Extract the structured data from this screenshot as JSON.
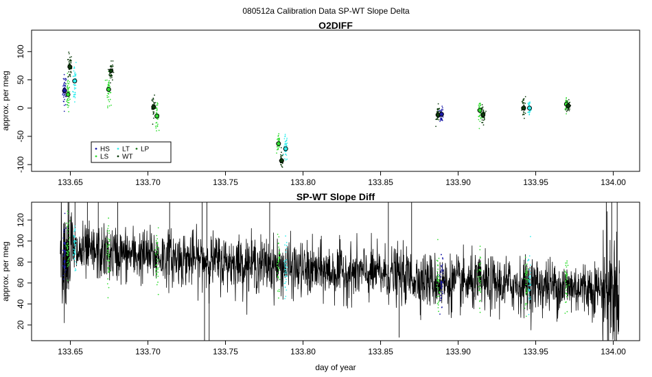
{
  "figure": {
    "title": "080512a   Calibration Data SP-WT Slope Delta"
  },
  "colors": {
    "HS": "#1a1aa8",
    "LS": "#33dd33",
    "LT": "#33eeee",
    "WT": "#0a3a0a",
    "LP": "#1e7a1e",
    "noise": "#000000"
  },
  "chart_data": [
    {
      "type": "scatter",
      "title": "O2DIFF",
      "ylabel": "approx. per meg",
      "xlabel": "",
      "xlim": [
        133.625,
        134.017
      ],
      "ylim": [
        -112,
        138
      ],
      "xticks": [
        133.65,
        133.7,
        133.75,
        133.8,
        133.85,
        133.9,
        133.95,
        134.0
      ],
      "xtick_labels": [
        "133.65",
        "133.70",
        "133.75",
        "133.80",
        "133.85",
        "133.90",
        "133.95",
        "134.00"
      ],
      "yticks": [
        -100,
        -50,
        0,
        50,
        100
      ],
      "ytick_labels": [
        "-100",
        "-50",
        "0",
        "50",
        "100"
      ],
      "legend": {
        "position": "bottom-left",
        "entries": [
          {
            "label": "HS",
            "color_key": "HS"
          },
          {
            "label": "LS",
            "color_key": "LS"
          },
          {
            "label": "LT",
            "color_key": "LT"
          },
          {
            "label": "WT",
            "color_key": "WT"
          },
          {
            "label": "LP",
            "color_key": "LP"
          }
        ]
      },
      "means": [
        {
          "gas": "HS",
          "x": 133.6463,
          "y": 31
        },
        {
          "gas": "LS",
          "x": 133.6485,
          "y": 24
        },
        {
          "gas": "WT",
          "x": 133.6497,
          "y": 73
        },
        {
          "gas": "LT",
          "x": 133.6528,
          "y": 48
        },
        {
          "gas": "LS",
          "x": 133.6747,
          "y": 33
        },
        {
          "gas": "WT",
          "x": 133.6762,
          "y": 66
        },
        {
          "gas": "WT",
          "x": 133.7037,
          "y": 2
        },
        {
          "gas": "LS",
          "x": 133.7058,
          "y": -14
        },
        {
          "gas": "LS",
          "x": 133.7842,
          "y": -63
        },
        {
          "gas": "WT",
          "x": 133.7862,
          "y": -93
        },
        {
          "gas": "LT",
          "x": 133.7888,
          "y": -72
        },
        {
          "gas": "WT",
          "x": 133.887,
          "y": -12
        },
        {
          "gas": "HS",
          "x": 133.8893,
          "y": -11
        },
        {
          "gas": "LS",
          "x": 133.914,
          "y": -4
        },
        {
          "gas": "WT",
          "x": 133.916,
          "y": -12
        },
        {
          "gas": "WT",
          "x": 133.9422,
          "y": 0
        },
        {
          "gas": "LT",
          "x": 133.946,
          "y": 0
        },
        {
          "gas": "LS",
          "x": 133.9698,
          "y": 7
        },
        {
          "gas": "WT",
          "x": 133.971,
          "y": 4
        }
      ],
      "clusters": [
        {
          "gas": "HS",
          "x": 133.6463,
          "y": 31,
          "sd": 14,
          "n": 45
        },
        {
          "gas": "LS",
          "x": 133.6485,
          "y": 24,
          "sd": 15,
          "n": 45
        },
        {
          "gas": "WT",
          "x": 133.6497,
          "y": 73,
          "sd": 12,
          "n": 40
        },
        {
          "gas": "LT",
          "x": 133.6528,
          "y": 48,
          "sd": 22,
          "n": 40
        },
        {
          "gas": "LS",
          "x": 133.6747,
          "y": 33,
          "sd": 14,
          "n": 40
        },
        {
          "gas": "WT",
          "x": 133.6762,
          "y": 66,
          "sd": 10,
          "n": 40
        },
        {
          "gas": "WT",
          "x": 133.7037,
          "y": 2,
          "sd": 9,
          "n": 35
        },
        {
          "gas": "LS",
          "x": 133.7058,
          "y": -14,
          "sd": 10,
          "n": 35
        },
        {
          "gas": "LS",
          "x": 133.7842,
          "y": -63,
          "sd": 9,
          "n": 35
        },
        {
          "gas": "WT",
          "x": 133.7862,
          "y": -93,
          "sd": 7,
          "n": 35
        },
        {
          "gas": "LT",
          "x": 133.7888,
          "y": -72,
          "sd": 12,
          "n": 35
        },
        {
          "gas": "WT",
          "x": 133.887,
          "y": -12,
          "sd": 8,
          "n": 35
        },
        {
          "gas": "HS",
          "x": 133.8893,
          "y": -11,
          "sd": 6,
          "n": 40
        },
        {
          "gas": "LS",
          "x": 133.914,
          "y": -4,
          "sd": 8,
          "n": 35
        },
        {
          "gas": "WT",
          "x": 133.916,
          "y": -12,
          "sd": 8,
          "n": 35
        },
        {
          "gas": "WT",
          "x": 133.9422,
          "y": 0,
          "sd": 10,
          "n": 35
        },
        {
          "gas": "LT",
          "x": 133.946,
          "y": 0,
          "sd": 8,
          "n": 35
        },
        {
          "gas": "LS",
          "x": 133.9698,
          "y": 7,
          "sd": 6,
          "n": 35
        },
        {
          "gas": "WT",
          "x": 133.971,
          "y": 4,
          "sd": 6,
          "n": 35
        }
      ]
    },
    {
      "type": "line",
      "title": "SP-WT Slope Diff",
      "ylabel": "approx. per meg",
      "xlabel": "day of year",
      "xlim": [
        133.625,
        134.017
      ],
      "ylim": [
        5,
        137
      ],
      "xticks": [
        133.65,
        133.7,
        133.75,
        133.8,
        133.85,
        133.9,
        133.95,
        134.0
      ],
      "xtick_labels": [
        "133.65",
        "133.70",
        "133.75",
        "133.80",
        "133.85",
        "133.90",
        "133.95",
        "134.00"
      ],
      "yticks": [
        20,
        40,
        60,
        80,
        100,
        120
      ],
      "ytick_labels": [
        "20",
        "40",
        "60",
        "80",
        "100",
        "120"
      ],
      "trend": [
        {
          "x": 133.645,
          "y": 90
        },
        {
          "x": 133.7,
          "y": 86
        },
        {
          "x": 133.75,
          "y": 80
        },
        {
          "x": 133.78,
          "y": 77
        },
        {
          "x": 133.8,
          "y": 72
        },
        {
          "x": 133.86,
          "y": 68
        },
        {
          "x": 133.89,
          "y": 60
        },
        {
          "x": 133.95,
          "y": 58
        },
        {
          "x": 134.005,
          "y": 54
        }
      ],
      "noise_sd": 13,
      "spikes": [
        {
          "x": 133.6485,
          "y": 137
        },
        {
          "x": 133.653,
          "y": 137
        },
        {
          "x": 133.661,
          "y": 137
        },
        {
          "x": 133.668,
          "y": 137
        },
        {
          "x": 133.6805,
          "y": 137
        },
        {
          "x": 133.714,
          "y": 137
        },
        {
          "x": 133.735,
          "y": 137
        },
        {
          "x": 133.7365,
          "y": 5
        },
        {
          "x": 133.738,
          "y": 137
        },
        {
          "x": 133.7395,
          "y": 5
        },
        {
          "x": 133.7785,
          "y": 137
        },
        {
          "x": 133.855,
          "y": 137
        },
        {
          "x": 133.862,
          "y": 8
        },
        {
          "x": 133.87,
          "y": 137
        },
        {
          "x": 133.9955,
          "y": 137
        },
        {
          "x": 133.997,
          "y": 5
        },
        {
          "x": 133.999,
          "y": 137
        },
        {
          "x": 134.001,
          "y": 5
        },
        {
          "x": 134.0025,
          "y": 137
        }
      ],
      "overlays": [
        {
          "gas": "HS",
          "x": 133.6463,
          "y": 88,
          "n": 45
        },
        {
          "gas": "LS",
          "x": 133.6485,
          "y": 95,
          "n": 45
        },
        {
          "gas": "LT",
          "x": 133.6528,
          "y": 92,
          "n": 40
        },
        {
          "gas": "LS",
          "x": 133.6747,
          "y": 85,
          "n": 40
        },
        {
          "gas": "LS",
          "x": 133.7058,
          "y": 83,
          "n": 35
        },
        {
          "gas": "LS",
          "x": 133.7842,
          "y": 80,
          "n": 35
        },
        {
          "gas": "LT",
          "x": 133.7888,
          "y": 70,
          "n": 35
        },
        {
          "gas": "HS",
          "x": 133.8893,
          "y": 58,
          "n": 40
        },
        {
          "gas": "LS",
          "x": 133.887,
          "y": 62,
          "n": 35
        },
        {
          "gas": "LS",
          "x": 133.914,
          "y": 60,
          "n": 35
        },
        {
          "gas": "LT",
          "x": 133.946,
          "y": 58,
          "n": 35
        },
        {
          "gas": "LS",
          "x": 133.944,
          "y": 60,
          "n": 35
        },
        {
          "gas": "LS",
          "x": 133.9698,
          "y": 57,
          "n": 35
        }
      ]
    }
  ]
}
